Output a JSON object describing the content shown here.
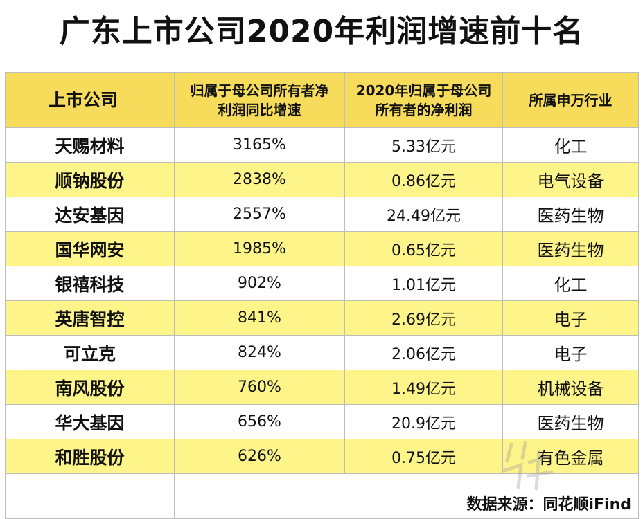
{
  "title": "广东上市公司2020年利润增速前十名",
  "table": {
    "headers": [
      "上市公司",
      "归属于母公司所有者净利润同比增速",
      "2020年归属于母公司所有者的净利润",
      "所属申万行业"
    ],
    "rows": [
      [
        "天赐材料",
        "3165%",
        "5.33亿元",
        "化工"
      ],
      [
        "顺钠股份",
        "2838%",
        "0.86亿元",
        "电气设备"
      ],
      [
        "达安基因",
        "2557%",
        "24.49亿元",
        "医药生物"
      ],
      [
        "国华网安",
        "1985%",
        "0.65亿元",
        "医药生物"
      ],
      [
        "银禧科技",
        "902%",
        "1.01亿元",
        "化工"
      ],
      [
        "英唐智控",
        "841%",
        "2.69亿元",
        "电子"
      ],
      [
        "可立克",
        "824%",
        "2.06亿元",
        "电子"
      ],
      [
        "南风股份",
        "760%",
        "1.49亿元",
        "机械设备"
      ],
      [
        "华大基因",
        "656%",
        "20.9亿元",
        "医药生物"
      ],
      [
        "和胜股份",
        "626%",
        "0.75亿元",
        "有色金属"
      ]
    ]
  },
  "source": "数据来源：同花顺iFind",
  "colors": {
    "header_bg": "#f6dc5a",
    "row_highlight": "#fdf58a",
    "border": "#bdbdbd"
  },
  "watermark_icon": "nanfang-logo-watermark"
}
